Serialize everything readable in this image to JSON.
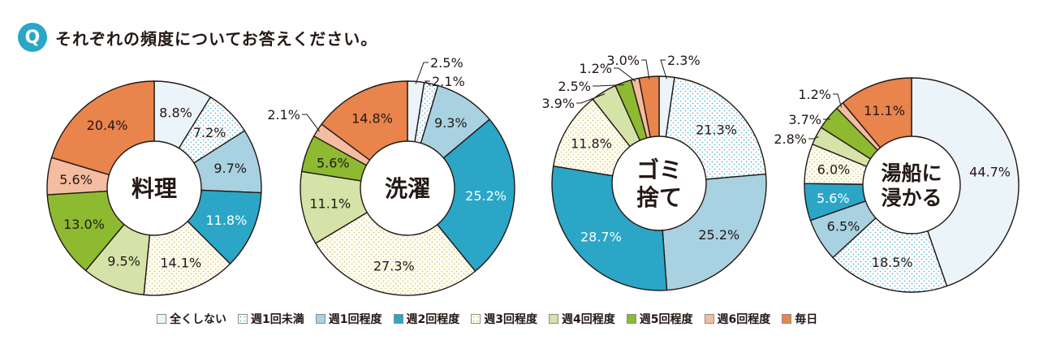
{
  "header": {
    "badge": "Q",
    "question": "それぞれの頻度についてお答えください。"
  },
  "legend": [
    {
      "label": "全くしない",
      "color": "#ebf4f9",
      "pattern": "none"
    },
    {
      "label": "週1回未満",
      "color": "#ffffff",
      "pattern": "dots"
    },
    {
      "label": "週1回程度",
      "color": "#a8d2e1",
      "pattern": "none"
    },
    {
      "label": "週2回程度",
      "color": "#2ba6c6",
      "pattern": "none"
    },
    {
      "label": "週3回程度",
      "color": "#fffdf1",
      "pattern": "dots-warm"
    },
    {
      "label": "週4回程度",
      "color": "#d5e2a8",
      "pattern": "none"
    },
    {
      "label": "週5回程度",
      "color": "#8dba30",
      "pattern": "none"
    },
    {
      "label": "週6回程度",
      "color": "#f4bca0",
      "pattern": "none"
    },
    {
      "label": "毎日",
      "color": "#e8844c",
      "pattern": "none"
    }
  ],
  "chart_data": [
    {
      "type": "pie",
      "title": "料理",
      "title_lines": [
        "料理"
      ],
      "center_font": 28,
      "categories": [
        "全くしない",
        "週1回未満",
        "週1回程度",
        "週2回程度",
        "週3回程度",
        "週4回程度",
        "週5回程度",
        "週6回程度",
        "毎日"
      ],
      "values": [
        8.8,
        7.2,
        9.7,
        11.8,
        14.1,
        9.5,
        13.0,
        5.6,
        20.4
      ],
      "labels": [
        "8.8%",
        "7.2%",
        "9.7%",
        "11.8%",
        "14.1%",
        "9.5%",
        "13.0%",
        "5.6%",
        "20.4%"
      ]
    },
    {
      "type": "pie",
      "title": "洗濯",
      "title_lines": [
        "洗濯"
      ],
      "center_font": 28,
      "categories": [
        "全くしない",
        "週1回未満",
        "週1回程度",
        "週2回程度",
        "週3回程度",
        "週4回程度",
        "週5回程度",
        "週6回程度",
        "毎日"
      ],
      "values": [
        2.5,
        2.1,
        9.3,
        25.2,
        27.3,
        11.1,
        5.6,
        2.1,
        14.8
      ],
      "labels": [
        "2.5%",
        "2.1%",
        "9.3%",
        "25.2%",
        "27.3%",
        "11.1%",
        "5.6%",
        "2.1%",
        "14.8%"
      ]
    },
    {
      "type": "pie",
      "title": "ゴミ捨て",
      "title_lines": [
        "ゴミ",
        "捨て"
      ],
      "center_font": 28,
      "categories": [
        "全くしない",
        "週1回未満",
        "週1回程度",
        "週2回程度",
        "週3回程度",
        "週4回程度",
        "週5回程度",
        "週6回程度",
        "毎日"
      ],
      "values": [
        2.3,
        21.3,
        25.2,
        28.7,
        11.8,
        3.9,
        2.5,
        1.2,
        3.0
      ],
      "labels": [
        "2.3%",
        "21.3%",
        "25.2%",
        "28.7%",
        "11.8%",
        "3.9%",
        "2.5%",
        "1.2%",
        "3.0%"
      ]
    },
    {
      "type": "pie",
      "title": "湯船に浸かる",
      "title_lines": [
        "湯船に",
        "浸かる"
      ],
      "center_font": 25,
      "categories": [
        "全くしない",
        "週1回未満",
        "週1回程度",
        "週2回程度",
        "週3回程度",
        "週4回程度",
        "週5回程度",
        "週6回程度",
        "毎日"
      ],
      "values": [
        44.7,
        18.5,
        6.5,
        5.6,
        6.0,
        2.8,
        3.7,
        1.2,
        11.1
      ],
      "labels": [
        "44.7%",
        "18.5%",
        "6.5%",
        "5.6%",
        "6.0%",
        "2.8%",
        "3.7%",
        "1.2%",
        "11.1%"
      ]
    }
  ]
}
